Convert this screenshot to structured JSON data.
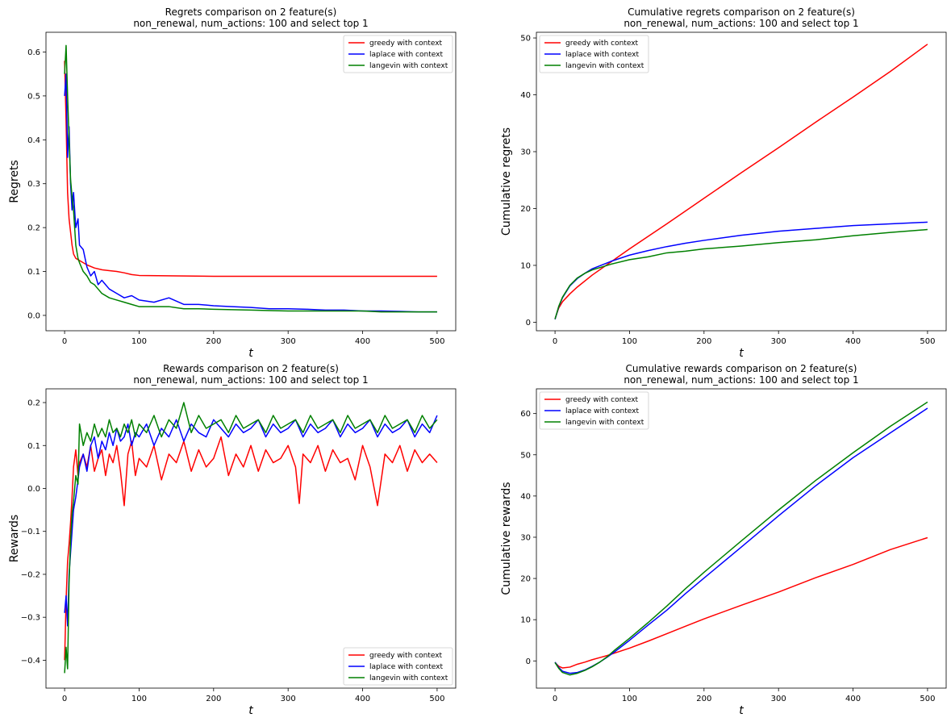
{
  "chart_data": [
    {
      "type": "line",
      "title": "Regrets comparison on 2 feature(s)",
      "subtitle": "non_renewal, num_actions: 100 and select top 1",
      "xlabel": "t",
      "ylabel": "Regrets",
      "xlim": [
        -25,
        525
      ],
      "ylim": [
        -0.035,
        0.645
      ],
      "xticks": [
        0,
        100,
        200,
        300,
        400,
        500
      ],
      "yticks": [
        0.0,
        0.1,
        0.2,
        0.3,
        0.4,
        0.5,
        0.6
      ],
      "ytick_labels": [
        "0.0",
        "0.1",
        "0.2",
        "0.3",
        "0.4",
        "0.5",
        "0.6"
      ],
      "legend_position": "top-right",
      "grid": false,
      "series": [
        {
          "name": "greedy with context",
          "color": "#ff0000",
          "x": [
            0,
            2,
            4,
            6,
            8,
            10,
            12,
            15,
            20,
            25,
            30,
            40,
            50,
            60,
            70,
            80,
            90,
            100,
            150,
            200,
            250,
            300,
            350,
            400,
            450,
            500
          ],
          "y": [
            0.58,
            0.44,
            0.28,
            0.22,
            0.19,
            0.16,
            0.14,
            0.13,
            0.125,
            0.12,
            0.115,
            0.108,
            0.104,
            0.102,
            0.1,
            0.097,
            0.093,
            0.091,
            0.09,
            0.089,
            0.089,
            0.089,
            0.089,
            0.089,
            0.089,
            0.089
          ]
        },
        {
          "name": "laplace with context",
          "color": "#0000ff",
          "x": [
            0,
            2,
            4,
            6,
            8,
            10,
            12,
            15,
            18,
            20,
            25,
            30,
            35,
            40,
            45,
            50,
            60,
            70,
            80,
            90,
            100,
            120,
            140,
            160,
            180,
            200,
            225,
            250,
            275,
            300,
            325,
            350,
            375,
            400,
            425,
            450,
            475,
            500
          ],
          "y": [
            0.5,
            0.55,
            0.36,
            0.43,
            0.3,
            0.24,
            0.28,
            0.2,
            0.22,
            0.16,
            0.15,
            0.11,
            0.09,
            0.1,
            0.07,
            0.08,
            0.06,
            0.05,
            0.04,
            0.045,
            0.035,
            0.03,
            0.04,
            0.025,
            0.025,
            0.022,
            0.02,
            0.018,
            0.015,
            0.015,
            0.014,
            0.012,
            0.012,
            0.01,
            0.01,
            0.009,
            0.008,
            0.008
          ]
        },
        {
          "name": "langevin with context",
          "color": "#008000",
          "x": [
            0,
            2,
            4,
            6,
            8,
            10,
            12,
            15,
            18,
            20,
            25,
            30,
            35,
            40,
            45,
            50,
            60,
            70,
            80,
            90,
            100,
            120,
            140,
            160,
            180,
            200,
            225,
            250,
            275,
            300,
            325,
            350,
            375,
            400,
            425,
            450,
            475,
            500
          ],
          "y": [
            0.55,
            0.615,
            0.5,
            0.4,
            0.31,
            0.27,
            0.24,
            0.16,
            0.13,
            0.12,
            0.1,
            0.09,
            0.075,
            0.07,
            0.06,
            0.05,
            0.04,
            0.035,
            0.03,
            0.025,
            0.02,
            0.02,
            0.02,
            0.015,
            0.015,
            0.014,
            0.013,
            0.012,
            0.011,
            0.01,
            0.01,
            0.01,
            0.01,
            0.01,
            0.008,
            0.008,
            0.008,
            0.008
          ]
        }
      ]
    },
    {
      "type": "line",
      "title": "Cumulative regrets comparison on 2 feature(s)",
      "subtitle": "non_renewal, num_actions: 100 and select top 1",
      "xlabel": "t",
      "ylabel": "Cumulative regrets",
      "xlim": [
        -25,
        525
      ],
      "ylim": [
        -1.5,
        51.0
      ],
      "xticks": [
        0,
        100,
        200,
        300,
        400,
        500
      ],
      "yticks": [
        0,
        10,
        20,
        30,
        40,
        50
      ],
      "ytick_labels": [
        "0",
        "10",
        "20",
        "30",
        "40",
        "50"
      ],
      "legend_position": "top-left",
      "grid": false,
      "series": [
        {
          "name": "greedy with context",
          "color": "#ff0000",
          "x": [
            0,
            5,
            10,
            20,
            30,
            50,
            75,
            100,
            150,
            200,
            250,
            300,
            350,
            400,
            450,
            500
          ],
          "y": [
            0.6,
            2.5,
            3.6,
            5.0,
            6.2,
            8.3,
            10.6,
            12.9,
            17.3,
            21.8,
            26.3,
            30.7,
            35.2,
            39.6,
            44.1,
            48.9
          ]
        },
        {
          "name": "laplace with context",
          "color": "#0000ff",
          "x": [
            0,
            5,
            10,
            20,
            30,
            40,
            50,
            75,
            100,
            125,
            150,
            175,
            200,
            250,
            300,
            350,
            400,
            450,
            500
          ],
          "y": [
            0.5,
            2.7,
            4.3,
            6.4,
            7.7,
            8.6,
            9.4,
            10.7,
            11.8,
            12.6,
            13.3,
            13.9,
            14.4,
            15.3,
            16.0,
            16.5,
            17.0,
            17.3,
            17.6
          ]
        },
        {
          "name": "langevin with context",
          "color": "#008000",
          "x": [
            0,
            5,
            10,
            20,
            30,
            40,
            50,
            75,
            100,
            125,
            150,
            175,
            200,
            250,
            300,
            350,
            400,
            450,
            500
          ],
          "y": [
            0.55,
            2.8,
            4.4,
            6.5,
            7.8,
            8.6,
            9.2,
            10.2,
            11.0,
            11.5,
            12.2,
            12.5,
            12.9,
            13.4,
            14.0,
            14.5,
            15.2,
            15.8,
            16.3
          ]
        }
      ]
    },
    {
      "type": "line",
      "title": "Rewards comparison on 2 feature(s)",
      "subtitle": "non_renewal, num_actions: 100 and select top 1",
      "xlabel": "t",
      "ylabel": "Rewards",
      "xlim": [
        -25,
        525
      ],
      "ylim": [
        -0.465,
        0.232
      ],
      "xticks": [
        0,
        100,
        200,
        300,
        400,
        500
      ],
      "yticks": [
        -0.4,
        -0.3,
        -0.2,
        -0.1,
        0.0,
        0.1,
        0.2
      ],
      "ytick_labels": [
        "−0.4",
        "−0.3",
        "−0.2",
        "−0.1",
        "0.0",
        "0.1",
        "0.2"
      ],
      "legend_position": "bottom-right",
      "grid": false,
      "series": [
        {
          "name": "greedy with context",
          "color": "#ff0000",
          "x": [
            0,
            2,
            4,
            6,
            8,
            10,
            12,
            15,
            18,
            20,
            25,
            30,
            35,
            40,
            45,
            50,
            55,
            60,
            65,
            70,
            75,
            80,
            85,
            90,
            95,
            100,
            110,
            120,
            130,
            140,
            150,
            160,
            170,
            180,
            190,
            200,
            210,
            220,
            230,
            240,
            250,
            260,
            270,
            280,
            290,
            300,
            310,
            315,
            320,
            330,
            340,
            350,
            360,
            370,
            380,
            390,
            400,
            410,
            420,
            430,
            440,
            450,
            460,
            470,
            480,
            490,
            500
          ],
          "y": [
            -0.4,
            -0.26,
            -0.17,
            -0.13,
            -0.08,
            -0.02,
            0.05,
            0.09,
            0.03,
            0.06,
            0.08,
            0.05,
            0.1,
            0.04,
            0.07,
            0.09,
            0.03,
            0.08,
            0.06,
            0.1,
            0.04,
            -0.04,
            0.08,
            0.11,
            0.03,
            0.07,
            0.05,
            0.1,
            0.02,
            0.08,
            0.06,
            0.11,
            0.04,
            0.09,
            0.05,
            0.07,
            0.12,
            0.03,
            0.08,
            0.05,
            0.1,
            0.04,
            0.09,
            0.06,
            0.07,
            0.1,
            0.05,
            -0.035,
            0.08,
            0.06,
            0.1,
            0.04,
            0.09,
            0.06,
            0.07,
            0.02,
            0.1,
            0.05,
            -0.04,
            0.08,
            0.06,
            0.1,
            0.04,
            0.09,
            0.06,
            0.08,
            0.06
          ]
        },
        {
          "name": "laplace with context",
          "color": "#0000ff",
          "x": [
            0,
            2,
            4,
            6,
            8,
            10,
            12,
            15,
            18,
            20,
            25,
            30,
            35,
            40,
            45,
            50,
            55,
            60,
            65,
            70,
            75,
            80,
            85,
            90,
            95,
            100,
            110,
            120,
            130,
            140,
            150,
            160,
            170,
            180,
            190,
            200,
            210,
            220,
            230,
            240,
            250,
            260,
            270,
            280,
            290,
            300,
            310,
            320,
            330,
            340,
            350,
            360,
            370,
            380,
            390,
            400,
            410,
            420,
            430,
            440,
            450,
            460,
            470,
            480,
            490,
            500
          ],
          "y": [
            -0.29,
            -0.25,
            -0.32,
            -0.2,
            -0.15,
            -0.1,
            -0.05,
            -0.02,
            0.02,
            0.05,
            0.08,
            0.04,
            0.1,
            0.12,
            0.07,
            0.11,
            0.09,
            0.13,
            0.1,
            0.14,
            0.11,
            0.12,
            0.15,
            0.1,
            0.13,
            0.12,
            0.15,
            0.1,
            0.14,
            0.12,
            0.16,
            0.11,
            0.15,
            0.13,
            0.12,
            0.16,
            0.14,
            0.12,
            0.15,
            0.13,
            0.14,
            0.16,
            0.12,
            0.15,
            0.13,
            0.14,
            0.16,
            0.12,
            0.15,
            0.13,
            0.14,
            0.16,
            0.12,
            0.15,
            0.13,
            0.14,
            0.16,
            0.12,
            0.15,
            0.13,
            0.14,
            0.16,
            0.12,
            0.15,
            0.13,
            0.17
          ]
        },
        {
          "name": "langevin with context",
          "color": "#008000",
          "x": [
            0,
            2,
            4,
            6,
            8,
            10,
            12,
            15,
            18,
            20,
            25,
            30,
            35,
            40,
            45,
            50,
            55,
            60,
            65,
            70,
            75,
            80,
            85,
            90,
            95,
            100,
            110,
            120,
            130,
            140,
            150,
            160,
            170,
            180,
            190,
            200,
            210,
            220,
            230,
            240,
            250,
            260,
            270,
            280,
            290,
            300,
            310,
            320,
            330,
            340,
            350,
            360,
            370,
            380,
            390,
            400,
            410,
            420,
            430,
            440,
            450,
            460,
            470,
            480,
            490,
            500
          ],
          "y": [
            -0.43,
            -0.37,
            -0.42,
            -0.22,
            -0.12,
            -0.06,
            -0.03,
            0.03,
            0.01,
            0.15,
            0.1,
            0.13,
            0.11,
            0.15,
            0.12,
            0.14,
            0.12,
            0.16,
            0.13,
            0.14,
            0.12,
            0.15,
            0.13,
            0.16,
            0.12,
            0.15,
            0.13,
            0.17,
            0.12,
            0.16,
            0.14,
            0.2,
            0.13,
            0.17,
            0.14,
            0.15,
            0.16,
            0.13,
            0.17,
            0.14,
            0.15,
            0.16,
            0.13,
            0.17,
            0.14,
            0.15,
            0.16,
            0.13,
            0.17,
            0.14,
            0.15,
            0.16,
            0.13,
            0.17,
            0.14,
            0.15,
            0.16,
            0.13,
            0.17,
            0.14,
            0.15,
            0.16,
            0.13,
            0.17,
            0.14,
            0.16
          ]
        }
      ]
    },
    {
      "type": "line",
      "title": "Cumulative rewards comparison on 2 feature(s)",
      "subtitle": "non_renewal, num_actions: 100 and select top 1",
      "xlabel": "t",
      "ylabel": "Cumulative rewards",
      "xlim": [
        -25,
        525
      ],
      "ylim": [
        -6.6,
        66.0
      ],
      "xticks": [
        0,
        100,
        200,
        300,
        400,
        500
      ],
      "yticks": [
        0,
        10,
        20,
        30,
        40,
        50,
        60
      ],
      "ytick_labels": [
        "0",
        "10",
        "20",
        "30",
        "40",
        "50",
        "60"
      ],
      "legend_position": "top-left",
      "grid": false,
      "series": [
        {
          "name": "greedy with context",
          "color": "#ff0000",
          "x": [
            0,
            5,
            10,
            20,
            30,
            40,
            50,
            60,
            70,
            80,
            100,
            125,
            150,
            175,
            200,
            250,
            300,
            350,
            400,
            450,
            500
          ],
          "y": [
            -0.4,
            -1.3,
            -1.7,
            -1.5,
            -0.8,
            -0.3,
            0.3,
            0.8,
            1.3,
            1.9,
            3.1,
            4.8,
            6.6,
            8.4,
            10.2,
            13.5,
            16.7,
            20.2,
            23.4,
            27.0,
            29.9
          ]
        },
        {
          "name": "laplace with context",
          "color": "#0000ff",
          "x": [
            0,
            5,
            10,
            20,
            30,
            40,
            50,
            60,
            70,
            80,
            100,
            125,
            150,
            175,
            200,
            250,
            300,
            350,
            400,
            450,
            500
          ],
          "y": [
            -0.3,
            -1.6,
            -2.5,
            -3.0,
            -2.8,
            -2.2,
            -1.3,
            -0.3,
            0.9,
            2.2,
            5.0,
            8.7,
            12.3,
            16.3,
            20.1,
            27.6,
            35.2,
            42.5,
            49.3,
            55.3,
            61.3
          ]
        },
        {
          "name": "langevin with context",
          "color": "#008000",
          "x": [
            0,
            5,
            10,
            20,
            30,
            40,
            50,
            60,
            70,
            80,
            100,
            125,
            150,
            175,
            200,
            250,
            300,
            350,
            400,
            450,
            500
          ],
          "y": [
            -0.4,
            -1.8,
            -2.8,
            -3.4,
            -3.0,
            -2.3,
            -1.4,
            -0.3,
            1.0,
            2.6,
            5.5,
            9.3,
            13.3,
            17.5,
            21.5,
            29.1,
            36.6,
            43.8,
            50.5,
            56.9,
            62.8
          ]
        }
      ]
    }
  ]
}
